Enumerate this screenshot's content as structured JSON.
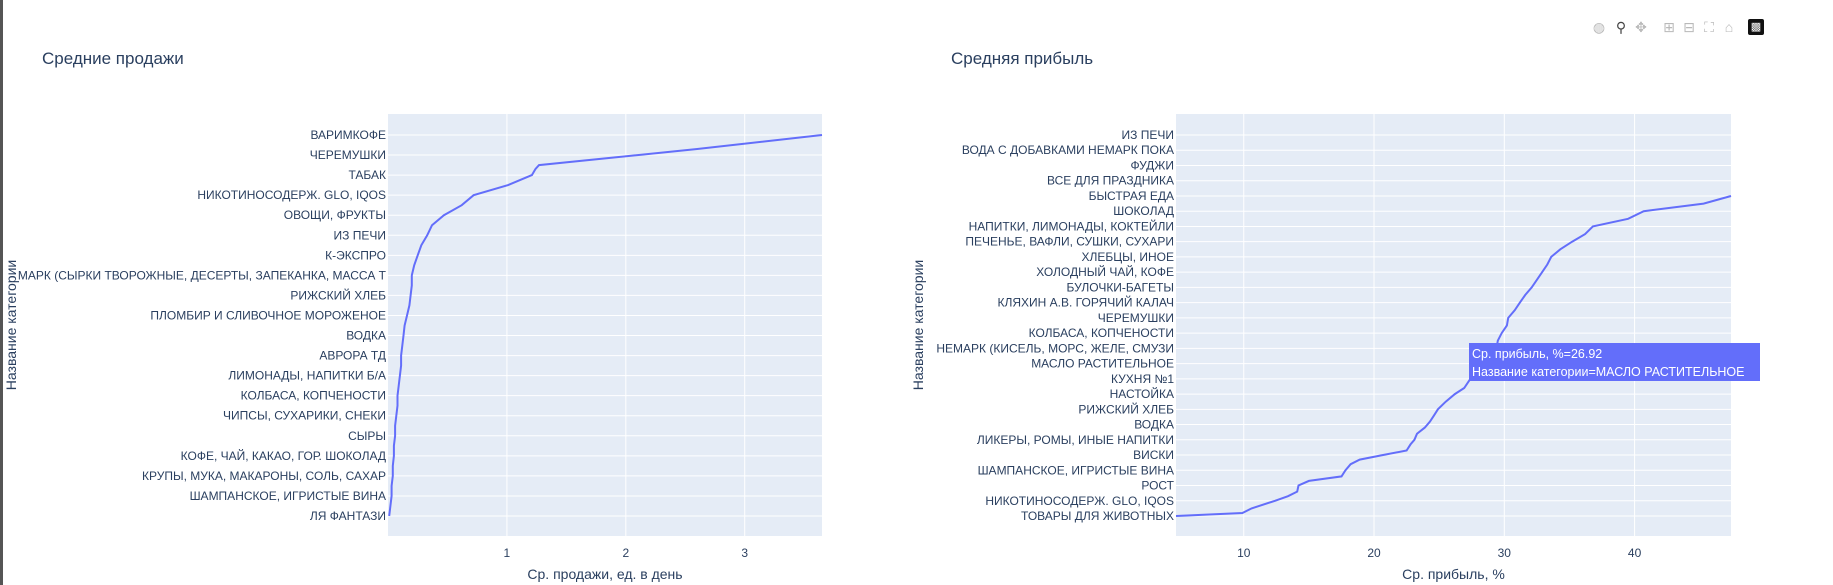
{
  "modebar": {
    "icons": [
      "camera-icon",
      "zoom-icon",
      "pan-icon",
      "zoom-in-icon",
      "zoom-out-icon",
      "autoscale-icon",
      "reset-axes-icon",
      "plotly-logo-icon"
    ]
  },
  "tooltip": {
    "line1": "Ср. прибыль, %=26.92",
    "line2": "Название категории=МАСЛО РАСТИТЕЛЬНОЕ",
    "bg_color": "#636efa"
  },
  "chart_data": [
    {
      "type": "line",
      "title": "Средние продажи",
      "xlabel": "Ср. продажи, ед. в день",
      "ylabel": "Название категории",
      "grid": true,
      "line_color": "#636efa",
      "xlim": [
        0,
        3.65
      ],
      "xticks": [
        1,
        2,
        3
      ],
      "y_tick_labels": [
        "ВАРИМКОФЕ",
        "ЧЕРЕМУШКИ",
        "ТАБАК",
        "НИКОТИНОСОДЕРЖ. GLO, IQOS",
        "ОВОЩИ, ФРУКТЫ",
        "ИЗ ПЕЧИ",
        "К-ЭКСПРО",
        "МАРК (СЫРКИ ТВОРОЖНЫЕ, ДЕСЕРТЫ, ЗАПЕКАНКА, МАССА Т",
        "РИЖСКИЙ ХЛЕБ",
        "ПЛОМБИР И СЛИВОЧНОЕ МОРОЖЕНОЕ",
        "ВОДКА",
        "АВРОРА ТД",
        "ЛИМОНАДЫ, НАПИТКИ Б/А",
        "КОЛБАСА, КОПЧЕНОСТИ",
        "ЧИПСЫ, СУХАРИКИ, СНЕКИ",
        "СЫРЫ",
        "КОФЕ, ЧАЙ, КАКАО, ГОР. ШОКОЛАД",
        "КРУПЫ, МУКА, МАКАРОНЫ, СОЛЬ, САХАР",
        "ШАМПАНСКОЕ, ИГРИСТЫЕ ВИНА",
        "ЛЯ ФАНТАЗИ"
      ],
      "n_categories": 20,
      "series": [
        {
          "x": [
            0.01,
            0.02,
            0.03,
            0.03,
            0.04,
            0.04,
            0.05,
            0.05,
            0.06,
            0.06,
            0.07,
            0.08,
            0.08,
            0.09,
            0.1,
            0.11,
            0.11,
            0.12,
            0.13,
            0.14,
            0.16,
            0.18,
            0.19,
            0.2,
            0.2,
            0.22,
            0.25,
            0.28,
            0.33,
            0.37,
            0.47,
            0.62,
            0.72,
            1.01,
            1.21,
            1.24,
            1.27,
            2.6,
            3.65
          ],
          "y": [
            1,
            1.5,
            2,
            2.5,
            3,
            3.5,
            4,
            4.5,
            5,
            5.5,
            6,
            6.5,
            7,
            7.5,
            8,
            8.5,
            9,
            9.5,
            10,
            10.5,
            11,
            11.5,
            12,
            12.5,
            13,
            13.5,
            14,
            14.5,
            15,
            15.5,
            16,
            16.5,
            17,
            17.5,
            18,
            18.3,
            18.5,
            19.3,
            20
          ]
        }
      ]
    },
    {
      "type": "line",
      "title": "Средняя прибыль",
      "xlabel": "Ср. прибыль, %",
      "ylabel": "Название категории",
      "grid": true,
      "line_color": "#636efa",
      "xlim": [
        4.8,
        47.4
      ],
      "xticks": [
        10,
        20,
        30,
        40
      ],
      "y_tick_labels": [
        "ИЗ ПЕЧИ",
        "ВОДА С ДОБАВКАМИ НЕМАРК ПОКА",
        "ФУДЖИ",
        "ВСЕ ДЛЯ ПРАЗДНИКА",
        "БЫСТРАЯ ЕДА",
        "ШОКОЛАД",
        "НАПИТКИ, ЛИМОНАДЫ, КОКТЕЙЛИ",
        "ПЕЧЕНЬЕ, ВАФЛИ, СУШКИ, СУХАРИ",
        "ХЛЕБЦЫ, ИНОЕ",
        "ХОЛОДНЫЙ ЧАЙ, КОФЕ",
        "БУЛОЧКИ-БАГЕТЫ",
        "КЛЯХИН А.В. ГОРЯЧИЙ КАЛАЧ",
        "ЧЕРЕМУШКИ",
        "КОЛБАСА, КОПЧЕНОСТИ",
        "НЕМАРК (КИСЕЛЬ, МОРС, ЖЕЛЕ, СМУЗИ",
        "МАСЛО РАСТИТЕЛЬНОЕ",
        "КУХНЯ №1",
        "НАСТОЙКА",
        "РИЖСКИЙ ХЛЕБ",
        "ВОДКА",
        "ЛИКЕРЫ, РОМЫ, ИНЫЕ НАПИТКИ",
        "ВИСКИ",
        "ШАМПАНСКОЕ, ИГРИСТЫЕ ВИНА",
        "РОСТ",
        "НИКОТИНОСОДЕРЖ. GLO, IQOS",
        "ТОВАРЫ ДЛЯ ЖИВОТНЫХ"
      ],
      "n_categories": 26,
      "series": [
        {
          "x": [
            4.8,
            9.9,
            10.6,
            12.4,
            13.4,
            14.1,
            14.2,
            15.0,
            17.5,
            17.8,
            18.2,
            18.9,
            20.7,
            22.5,
            22.8,
            23.1,
            23.3,
            23.9,
            24.3,
            24.6,
            24.9,
            25.5,
            26.2,
            26.92,
            27.4,
            28.2,
            28.8,
            29.0,
            29.4,
            29.5,
            29.8,
            30.2,
            30.3,
            30.8,
            31.2,
            31.6,
            32.1,
            32.5,
            32.9,
            33.3,
            33.6,
            34.3,
            35.2,
            36.2,
            36.8,
            39.5,
            40.7,
            45.3,
            47.4
          ],
          "y": [
            1,
            1.2,
            1.5,
            2,
            2.3,
            2.6,
            3,
            3.3,
            3.6,
            4,
            4.4,
            4.7,
            5,
            5.3,
            5.7,
            6,
            6.4,
            6.8,
            7.2,
            7.6,
            8,
            8.5,
            9,
            9.4,
            10,
            10.6,
            11,
            11.5,
            12,
            12.5,
            13,
            13.5,
            14,
            14.5,
            15,
            15.5,
            16,
            16.5,
            17,
            17.5,
            18,
            18.5,
            19,
            19.5,
            20,
            20.5,
            21,
            21.5,
            22
          ]
        }
      ]
    }
  ]
}
